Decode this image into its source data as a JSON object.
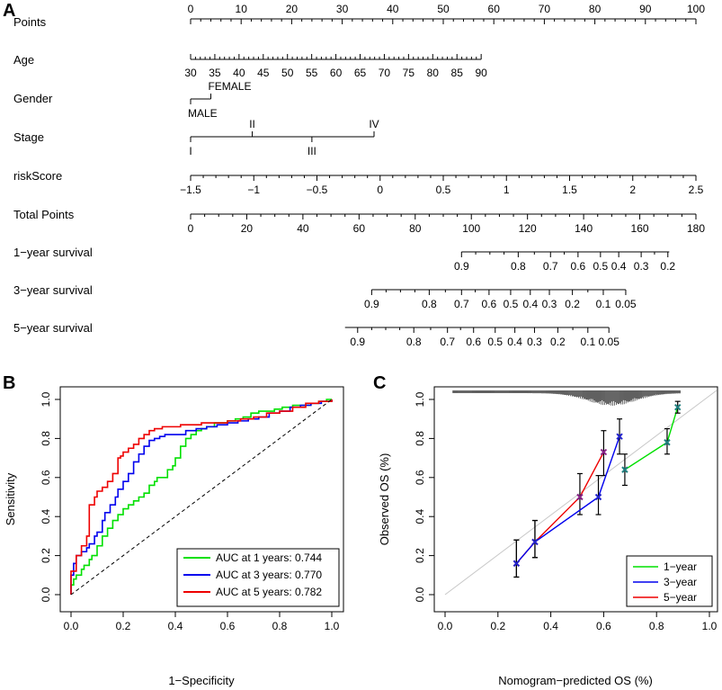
{
  "panel_labels": {
    "a": "A",
    "b": "B",
    "c": "C"
  },
  "chart_data": [
    {
      "type": "nomogram",
      "panel": "A",
      "rows": [
        {
          "label": "Points",
          "domain": [
            0,
            100
          ],
          "ticks": [
            0,
            10,
            20,
            30,
            40,
            50,
            60,
            70,
            80,
            90,
            100
          ],
          "minor_step": 2,
          "labels": [
            0,
            10,
            20,
            30,
            40,
            50,
            60,
            70,
            80,
            90,
            100
          ],
          "label_pos": "above"
        },
        {
          "label": "Age",
          "domain": [
            0,
            57.5
          ],
          "ticks": [
            30,
            35,
            40,
            45,
            50,
            55,
            60,
            65,
            70,
            75,
            80,
            85,
            90
          ],
          "value_start": 30,
          "value_end": 90,
          "labels": [
            30,
            35,
            40,
            45,
            50,
            55,
            60,
            65,
            70,
            75,
            80,
            85,
            90
          ],
          "label_pos": "below"
        },
        {
          "label": "Gender",
          "categories": [
            "MALE",
            "FEMALE"
          ],
          "points": [
            0,
            4
          ]
        },
        {
          "label": "Stage",
          "categories": [
            "I",
            "II",
            "III",
            "IV"
          ],
          "points": [
            0,
            12.2,
            24,
            36.3
          ]
        },
        {
          "label": "riskScore",
          "domain": [
            0,
            100
          ],
          "ticks": [
            -1.5,
            -1,
            -0.5,
            0,
            0.5,
            1,
            1.5,
            2,
            2.5
          ],
          "labels": [
            "−1.5",
            "−1",
            "−0.5",
            "0",
            "0.5",
            "1",
            "1.5",
            "2",
            "2.5"
          ],
          "value_start": -1.5,
          "value_end": 2.5,
          "label_pos": "below"
        },
        {
          "label": "Total Points",
          "ticks": [
            0,
            20,
            40,
            60,
            80,
            100,
            120,
            140,
            160,
            180
          ],
          "labels": [
            0,
            20,
            40,
            60,
            80,
            100,
            120,
            140,
            160,
            180
          ],
          "range": [
            0,
            180
          ],
          "label_pos": "below"
        },
        {
          "label": "1−year survival",
          "tick_labels": [
            "0.9",
            "0.8",
            "0.7",
            "0.6",
            "0.5",
            "0.4",
            "0.3",
            "0.2"
          ],
          "total_points": [
            96.5,
            116.7,
            128.2,
            138.0,
            146.0,
            152.5,
            160.5,
            170.0
          ],
          "line_total_points": [
            96.5,
            170.5
          ]
        },
        {
          "label": "3−year survival",
          "tick_labels": [
            "0.9",
            "0.8",
            "0.7",
            "0.6",
            "0.5",
            "0.4",
            "0.3",
            "0.2",
            "0.1",
            "0.05"
          ],
          "total_points": [
            64.5,
            85.0,
            96.5,
            106.3,
            114.0,
            121.0,
            127.8,
            136.0,
            147.0,
            155.0
          ],
          "line_total_points": [
            64.5,
            155.0
          ]
        },
        {
          "label": "5−year survival",
          "tick_labels": [
            "0.9",
            "0.8",
            "0.7",
            "0.6",
            "0.5",
            "0.4",
            "0.3",
            "0.2",
            "0.1",
            "0.05"
          ],
          "total_points": [
            59.5,
            79.5,
            91.5,
            100.8,
            108.5,
            115.5,
            122.5,
            130.8,
            141.5,
            149.0
          ],
          "line_total_points": [
            55.0,
            149.0
          ]
        }
      ]
    },
    {
      "type": "line",
      "panel": "B",
      "title": "",
      "xlabel": "1−Specificity",
      "ylabel": "Sensitivity",
      "xlim": [
        0,
        1
      ],
      "ylim": [
        0,
        1
      ],
      "xticks": [
        "0.0",
        "0.2",
        "0.4",
        "0.6",
        "0.8",
        "1.0"
      ],
      "yticks": [
        "0.0",
        "0.2",
        "0.4",
        "0.6",
        "0.8",
        "1.0"
      ],
      "legend_position": "bottom-right",
      "series": [
        {
          "name": "AUC at 1 years: 0.744",
          "color": "#00e000",
          "x": [
            0,
            0,
            0.01,
            0.02,
            0.04,
            0.05,
            0.07,
            0.08,
            0.1,
            0.12,
            0.14,
            0.16,
            0.18,
            0.2,
            0.22,
            0.24,
            0.26,
            0.28,
            0.3,
            0.32,
            0.33,
            0.35,
            0.37,
            0.39,
            0.4,
            0.42,
            0.44,
            0.46,
            0.48,
            0.5,
            0.52,
            0.55,
            0.58,
            0.6,
            0.63,
            0.66,
            0.69,
            0.72,
            0.75,
            0.78,
            0.81,
            0.85,
            0.88,
            0.92,
            0.95,
            0.98,
            1.0
          ],
          "y": [
            0,
            0.05,
            0.08,
            0.1,
            0.13,
            0.15,
            0.18,
            0.2,
            0.25,
            0.3,
            0.34,
            0.38,
            0.41,
            0.44,
            0.46,
            0.48,
            0.5,
            0.52,
            0.56,
            0.58,
            0.6,
            0.6,
            0.64,
            0.66,
            0.7,
            0.76,
            0.8,
            0.82,
            0.84,
            0.85,
            0.86,
            0.88,
            0.88,
            0.89,
            0.9,
            0.91,
            0.93,
            0.94,
            0.94,
            0.95,
            0.96,
            0.97,
            0.97,
            0.98,
            0.99,
            1.0,
            1.0
          ]
        },
        {
          "name": "AUC at 3 years: 0.770",
          "color": "#0000ee",
          "x": [
            0,
            0,
            0.01,
            0.02,
            0.04,
            0.06,
            0.07,
            0.09,
            0.1,
            0.12,
            0.13,
            0.15,
            0.17,
            0.18,
            0.2,
            0.22,
            0.24,
            0.26,
            0.28,
            0.3,
            0.32,
            0.34,
            0.36,
            0.4,
            0.44,
            0.48,
            0.52,
            0.56,
            0.6,
            0.64,
            0.68,
            0.72,
            0.76,
            0.8,
            0.84,
            0.88,
            0.92,
            0.96,
            1.0
          ],
          "y": [
            0,
            0.1,
            0.16,
            0.2,
            0.22,
            0.24,
            0.26,
            0.3,
            0.32,
            0.38,
            0.42,
            0.46,
            0.5,
            0.54,
            0.58,
            0.62,
            0.68,
            0.72,
            0.76,
            0.79,
            0.8,
            0.81,
            0.82,
            0.82,
            0.84,
            0.85,
            0.86,
            0.87,
            0.88,
            0.89,
            0.9,
            0.91,
            0.93,
            0.94,
            0.96,
            0.97,
            0.98,
            0.99,
            1.0
          ]
        },
        {
          "name": "AUC at 5 years: 0.782",
          "color": "#ee0000",
          "x": [
            0,
            0,
            0.02,
            0.04,
            0.06,
            0.07,
            0.08,
            0.09,
            0.1,
            0.12,
            0.14,
            0.16,
            0.18,
            0.19,
            0.2,
            0.22,
            0.24,
            0.26,
            0.28,
            0.3,
            0.32,
            0.35,
            0.38,
            0.42,
            0.46,
            0.5,
            0.55,
            0.6,
            0.65,
            0.7,
            0.75,
            0.8,
            0.85,
            0.9,
            0.95,
            1.0
          ],
          "y": [
            0,
            0.12,
            0.2,
            0.25,
            0.3,
            0.46,
            0.46,
            0.5,
            0.53,
            0.55,
            0.58,
            0.62,
            0.7,
            0.71,
            0.73,
            0.75,
            0.77,
            0.8,
            0.82,
            0.84,
            0.85,
            0.86,
            0.86,
            0.87,
            0.87,
            0.88,
            0.88,
            0.89,
            0.9,
            0.91,
            0.93,
            0.94,
            0.96,
            0.98,
            0.99,
            1.0
          ]
        },
        {
          "name": "reference",
          "color": "#000000",
          "dashed": true,
          "x": [
            0,
            1
          ],
          "y": [
            0,
            1
          ]
        }
      ]
    },
    {
      "type": "line",
      "panel": "C",
      "title": "",
      "xlabel": "Nomogram−predicted OS (%)",
      "ylabel": "Observed OS (%)",
      "xlim": [
        0,
        1
      ],
      "ylim": [
        0,
        1
      ],
      "xticks": [
        "0.0",
        "0.2",
        "0.4",
        "0.6",
        "0.8",
        "1.0"
      ],
      "yticks": [
        "0.0",
        "0.2",
        "0.4",
        "0.6",
        "0.8",
        "1.0"
      ],
      "legend_position": "bottom-right",
      "series": [
        {
          "name": "1−year",
          "color": "#00e000",
          "x": [
            0.68,
            0.84,
            0.88
          ],
          "y": [
            0.64,
            0.78,
            0.96
          ],
          "err_low": [
            0.56,
            0.72,
            0.93
          ],
          "err_high": [
            0.72,
            0.85,
            0.99
          ]
        },
        {
          "name": "3−year",
          "color": "#0000ee",
          "x": [
            0.27,
            0.34,
            0.58,
            0.66
          ],
          "y": [
            0.16,
            0.27,
            0.5,
            0.81
          ],
          "err_low": [
            0.09,
            0.19,
            0.41,
            0.72
          ],
          "err_high": [
            0.28,
            0.38,
            0.61,
            0.9
          ]
        },
        {
          "name": "5−year",
          "color": "#ee0000",
          "x": [
            0.27,
            0.34,
            0.51,
            0.6
          ],
          "y": [
            0.16,
            0.27,
            0.5,
            0.73
          ],
          "err_low": [
            0.09,
            0.19,
            0.41,
            0.61
          ],
          "err_high": [
            0.28,
            0.38,
            0.62,
            0.84
          ]
        },
        {
          "name": "ideal",
          "color": "#c8c8c8",
          "x": [
            0,
            1.05
          ],
          "y": [
            0,
            1.05
          ]
        }
      ]
    }
  ]
}
